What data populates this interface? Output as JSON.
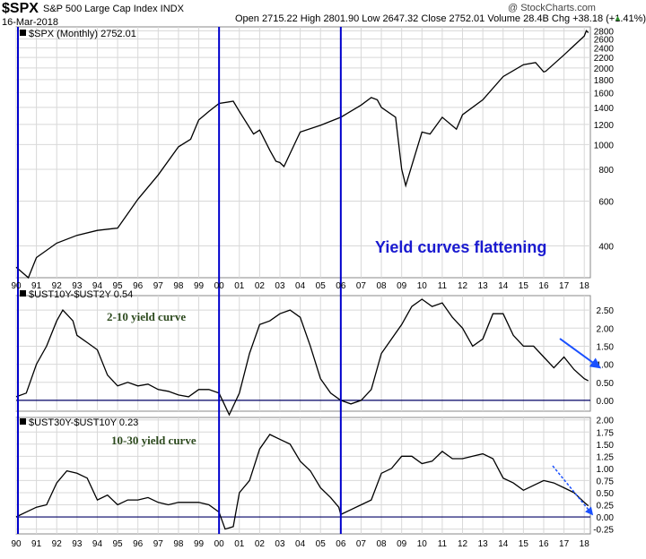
{
  "header": {
    "symbol": "$SPX",
    "description": "S&P 500 Large Cap Index INDX",
    "date": "16-Mar-2018",
    "quote": "Open 2715.22  High 2801.90  Low 2647.32  Close 2752.01  Volume 28.4B  Chg +38.18 (+1.41%)",
    "up_arrow": "▲",
    "credit": "@ StockCharts.com"
  },
  "colors": {
    "price": "#000000",
    "annotation": "#1a1ad0",
    "yc1": "#2d4a1e",
    "vline": "#0000cc",
    "grid": "#d8d8d8",
    "zero": "#000066"
  },
  "chart_data": [
    {
      "type": "line",
      "panel": "price",
      "series_label": "$SPX (Monthly) 2752.01",
      "annotation": "Yield curves flattening",
      "yscale": "log",
      "ylim": [
        300,
        2900
      ],
      "yticks": [
        400,
        600,
        800,
        1000,
        1200,
        1400,
        1600,
        1800,
        2000,
        2200,
        2400,
        2600,
        2800
      ],
      "x": [
        1990,
        1990.6,
        1991,
        1992,
        1993,
        1994,
        1995,
        1996,
        1997,
        1998,
        1998.6,
        1999,
        1999.5,
        2000,
        2000.7,
        2001,
        2001.7,
        2002,
        2002.5,
        2002.8,
        2003,
        2003.2,
        2004,
        2005,
        2006,
        2007,
        2007.5,
        2007.8,
        2008,
        2008.7,
        2009,
        2009.2,
        2010,
        2010.4,
        2011,
        2011.7,
        2012,
        2013,
        2014,
        2015,
        2015.6,
        2016,
        2016.1,
        2017,
        2018,
        2018.1,
        2018.2
      ],
      "values": [
        330,
        300,
        360,
        410,
        440,
        460,
        470,
        610,
        760,
        980,
        1050,
        1250,
        1350,
        1450,
        1480,
        1350,
        1100,
        1140,
        950,
        860,
        850,
        820,
        1120,
        1190,
        1280,
        1430,
        1530,
        1500,
        1400,
        1280,
        800,
        690,
        1120,
        1100,
        1280,
        1150,
        1310,
        1500,
        1850,
        2060,
        2100,
        1930,
        1940,
        2250,
        2670,
        2800,
        2752
      ]
    },
    {
      "type": "line",
      "panel": "lower",
      "series_label": "$UST10Y-$UST2Y 0.54",
      "annotation": "2-10 yield curve",
      "ylim": [
        -0.3,
        2.9
      ],
      "yticks": [
        0.0,
        0.5,
        1.0,
        1.5,
        2.0,
        2.5
      ],
      "x": [
        1990,
        1990.5,
        1991,
        1991.5,
        1992,
        1992.3,
        1992.8,
        1993,
        1993.5,
        1994,
        1994.5,
        1995,
        1995.5,
        1996,
        1996.5,
        1997,
        1997.5,
        1998,
        1998.5,
        1999,
        1999.5,
        2000,
        2000.5,
        2001,
        2001.5,
        2002,
        2002.5,
        2003,
        2003.5,
        2004,
        2004.5,
        2005,
        2005.5,
        2006,
        2006.5,
        2007,
        2007.5,
        2008,
        2008.5,
        2009,
        2009.5,
        2010,
        2010.5,
        2011,
        2011.5,
        2012,
        2012.5,
        2013,
        2013.5,
        2014,
        2014.5,
        2015,
        2015.5,
        2016,
        2016.5,
        2017,
        2017.5,
        2018,
        2018.2
      ],
      "values": [
        0.1,
        0.2,
        1.0,
        1.5,
        2.2,
        2.5,
        2.2,
        1.8,
        1.6,
        1.4,
        0.7,
        0.4,
        0.5,
        0.4,
        0.45,
        0.3,
        0.25,
        0.15,
        0.1,
        0.3,
        0.3,
        0.2,
        -0.4,
        0.2,
        1.3,
        2.1,
        2.2,
        2.4,
        2.5,
        2.3,
        1.5,
        0.6,
        0.2,
        0.0,
        -0.1,
        0.0,
        0.3,
        1.3,
        1.7,
        2.1,
        2.6,
        2.8,
        2.6,
        2.7,
        2.3,
        2.0,
        1.5,
        1.7,
        2.4,
        2.4,
        1.8,
        1.5,
        1.5,
        1.2,
        0.9,
        1.2,
        0.85,
        0.6,
        0.54
      ]
    },
    {
      "type": "line",
      "panel": "lower",
      "series_label": "$UST30Y-$UST10Y 0.23",
      "annotation": "10-30 yield curve",
      "ylim": [
        -0.35,
        2.05
      ],
      "yticks": [
        -0.25,
        0.0,
        0.25,
        0.5,
        0.75,
        1.0,
        1.25,
        1.5,
        1.75,
        2.0
      ],
      "x": [
        1990,
        1990.5,
        1991,
        1991.5,
        1992,
        1992.5,
        1993,
        1993.5,
        1994,
        1994.5,
        1995,
        1995.5,
        1996,
        1996.5,
        1997,
        1997.5,
        1998,
        1998.5,
        1999,
        1999.5,
        2000,
        2000.3,
        2000.7,
        2001,
        2001.5,
        2002,
        2002.5,
        2003,
        2003.5,
        2004,
        2004.5,
        2005,
        2005.5,
        2005.9,
        2006,
        2006.5,
        2007,
        2007.5,
        2008,
        2008.5,
        2009,
        2009.5,
        2010,
        2010.5,
        2011,
        2011.5,
        2012,
        2012.5,
        2013,
        2013.5,
        2014,
        2014.5,
        2015,
        2015.5,
        2016,
        2016.5,
        2017,
        2017.5,
        2018,
        2018.2
      ],
      "values": [
        0.0,
        0.1,
        0.2,
        0.25,
        0.7,
        0.95,
        0.9,
        0.8,
        0.35,
        0.45,
        0.25,
        0.35,
        0.35,
        0.4,
        0.3,
        0.25,
        0.3,
        0.3,
        0.3,
        0.25,
        0.1,
        -0.25,
        -0.2,
        0.5,
        0.75,
        1.4,
        1.7,
        1.6,
        1.5,
        1.15,
        0.95,
        0.6,
        0.4,
        0.2,
        0.05,
        0.15,
        0.25,
        0.35,
        0.9,
        1.0,
        1.25,
        1.25,
        1.1,
        1.15,
        1.35,
        1.2,
        1.2,
        1.25,
        1.3,
        1.2,
        0.8,
        0.7,
        0.55,
        0.65,
        0.75,
        0.7,
        0.6,
        0.5,
        0.3,
        0.23
      ]
    }
  ],
  "x_axis": {
    "labels": [
      "90",
      "91",
      "92",
      "93",
      "94",
      "95",
      "96",
      "97",
      "98",
      "99",
      "00",
      "01",
      "02",
      "03",
      "04",
      "05",
      "06",
      "07",
      "08",
      "09",
      "10",
      "11",
      "12",
      "13",
      "14",
      "15",
      "16",
      "17",
      "18"
    ]
  },
  "vertical_markers": [
    1990,
    2000,
    2006
  ]
}
